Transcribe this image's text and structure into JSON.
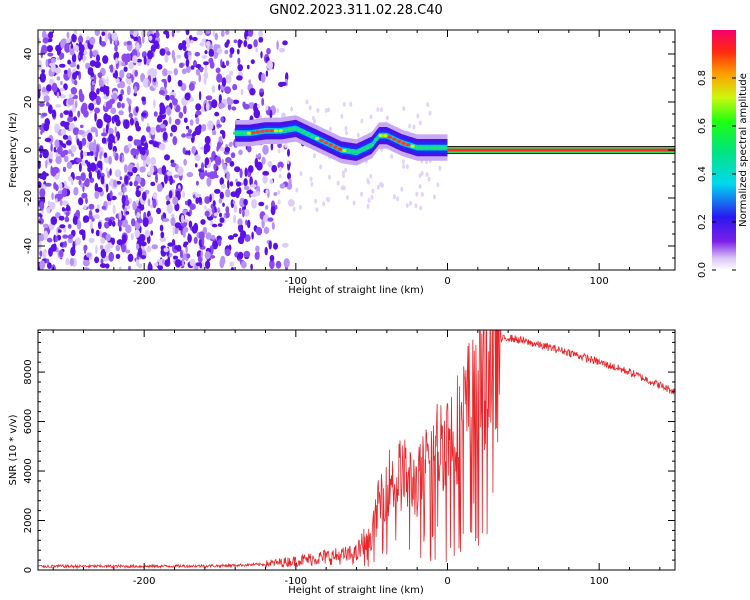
{
  "figure_title": "GN02.2023.311.02.28.C40",
  "chart_data": [
    {
      "type": "heatmap",
      "xlabel": "Height of straight line (km)",
      "ylabel": "Frequency (Hz)",
      "xlim": [
        -270,
        150
      ],
      "ylim": [
        -50,
        50
      ],
      "xticks": [
        -200,
        -100,
        0,
        100
      ],
      "yticks": [
        -40,
        -20,
        0,
        20,
        40
      ],
      "colorbar": {
        "label": "Normalized spectral amplitude",
        "range": [
          0,
          1
        ],
        "ticks": [
          0.0,
          0.2,
          0.4,
          0.6,
          0.8
        ],
        "colormap": "rainbow"
      },
      "noise_region_x": [
        -270,
        -120
      ],
      "frequency_ridge": {
        "x": [
          -140,
          -130,
          -120,
          -110,
          -100,
          -90,
          -80,
          -70,
          -60,
          -50,
          -45,
          -40,
          -30,
          -20,
          -10,
          0
        ],
        "freq": [
          7,
          7,
          8,
          8,
          9,
          6,
          3,
          0,
          -1,
          2,
          6,
          6,
          3,
          1,
          1,
          1
        ]
      },
      "constant_line": {
        "x": [
          0,
          150
        ],
        "freq": 0
      }
    },
    {
      "type": "line",
      "xlabel": "Height of straight line (km)",
      "ylabel": "SNR (10 * v/v)",
      "xlim": [
        -270,
        150
      ],
      "ylim": [
        0,
        9700
      ],
      "xticks": [
        -200,
        -100,
        0,
        100
      ],
      "yticks": [
        0,
        2000,
        4000,
        6000,
        8000
      ],
      "color": "#e8262a",
      "envelope": {
        "x": [
          -270,
          -200,
          -150,
          -120,
          -100,
          -80,
          -60,
          -50,
          -45,
          -40,
          -30,
          -20,
          -10,
          0,
          10,
          20,
          30,
          40,
          60,
          80,
          100,
          120,
          150
        ],
        "snr": [
          150,
          150,
          170,
          230,
          350,
          500,
          600,
          1500,
          3000,
          3800,
          4200,
          3700,
          5200,
          5800,
          6500,
          8500,
          9200,
          9400,
          9100,
          8800,
          8400,
          8000,
          7200
        ]
      }
    }
  ]
}
